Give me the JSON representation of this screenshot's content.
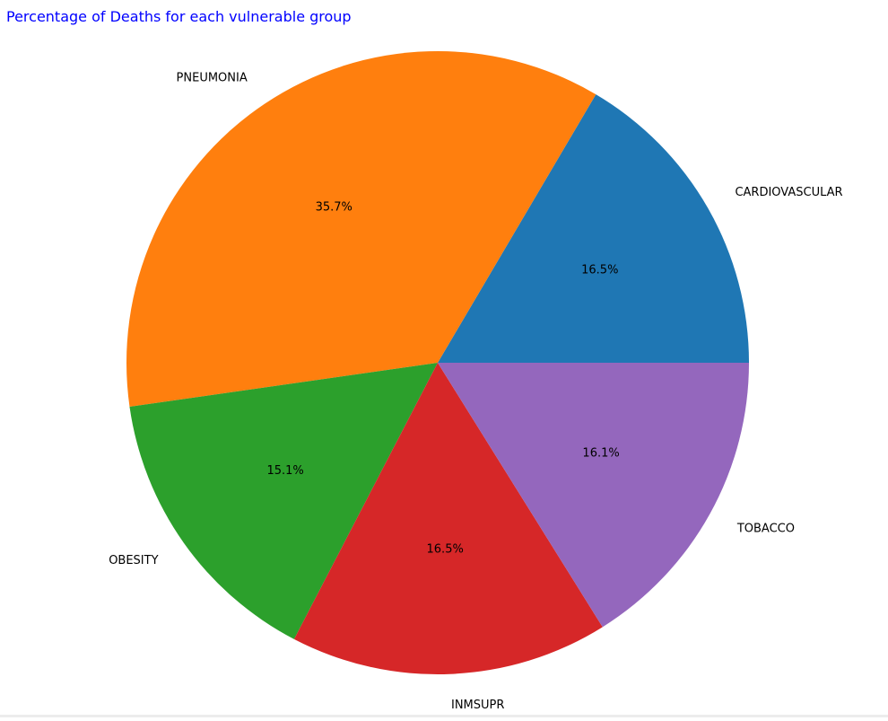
{
  "chart_data": {
    "type": "pie",
    "title": "Percentage of Deaths for each vulnerable group",
    "title_color": "#0000ff",
    "slices": [
      {
        "label": "CARDIOVASCULAR",
        "value": 16.5,
        "pct_label": "16.5%",
        "color": "#1f77b4"
      },
      {
        "label": "PNEUMONIA",
        "value": 35.7,
        "pct_label": "35.7%",
        "color": "#ff7f0e"
      },
      {
        "label": "OBESITY",
        "value": 15.1,
        "pct_label": "15.1%",
        "color": "#2ca02c"
      },
      {
        "label": "INMSUPR",
        "value": 16.5,
        "pct_label": "16.5%",
        "color": "#d62728"
      },
      {
        "label": "TOBACCO",
        "value": 16.1,
        "pct_label": "16.1%",
        "color": "#9467bd"
      }
    ],
    "start_angle": "0 (3 o'clock)",
    "direction": "counter-clockwise",
    "legend": "none"
  }
}
